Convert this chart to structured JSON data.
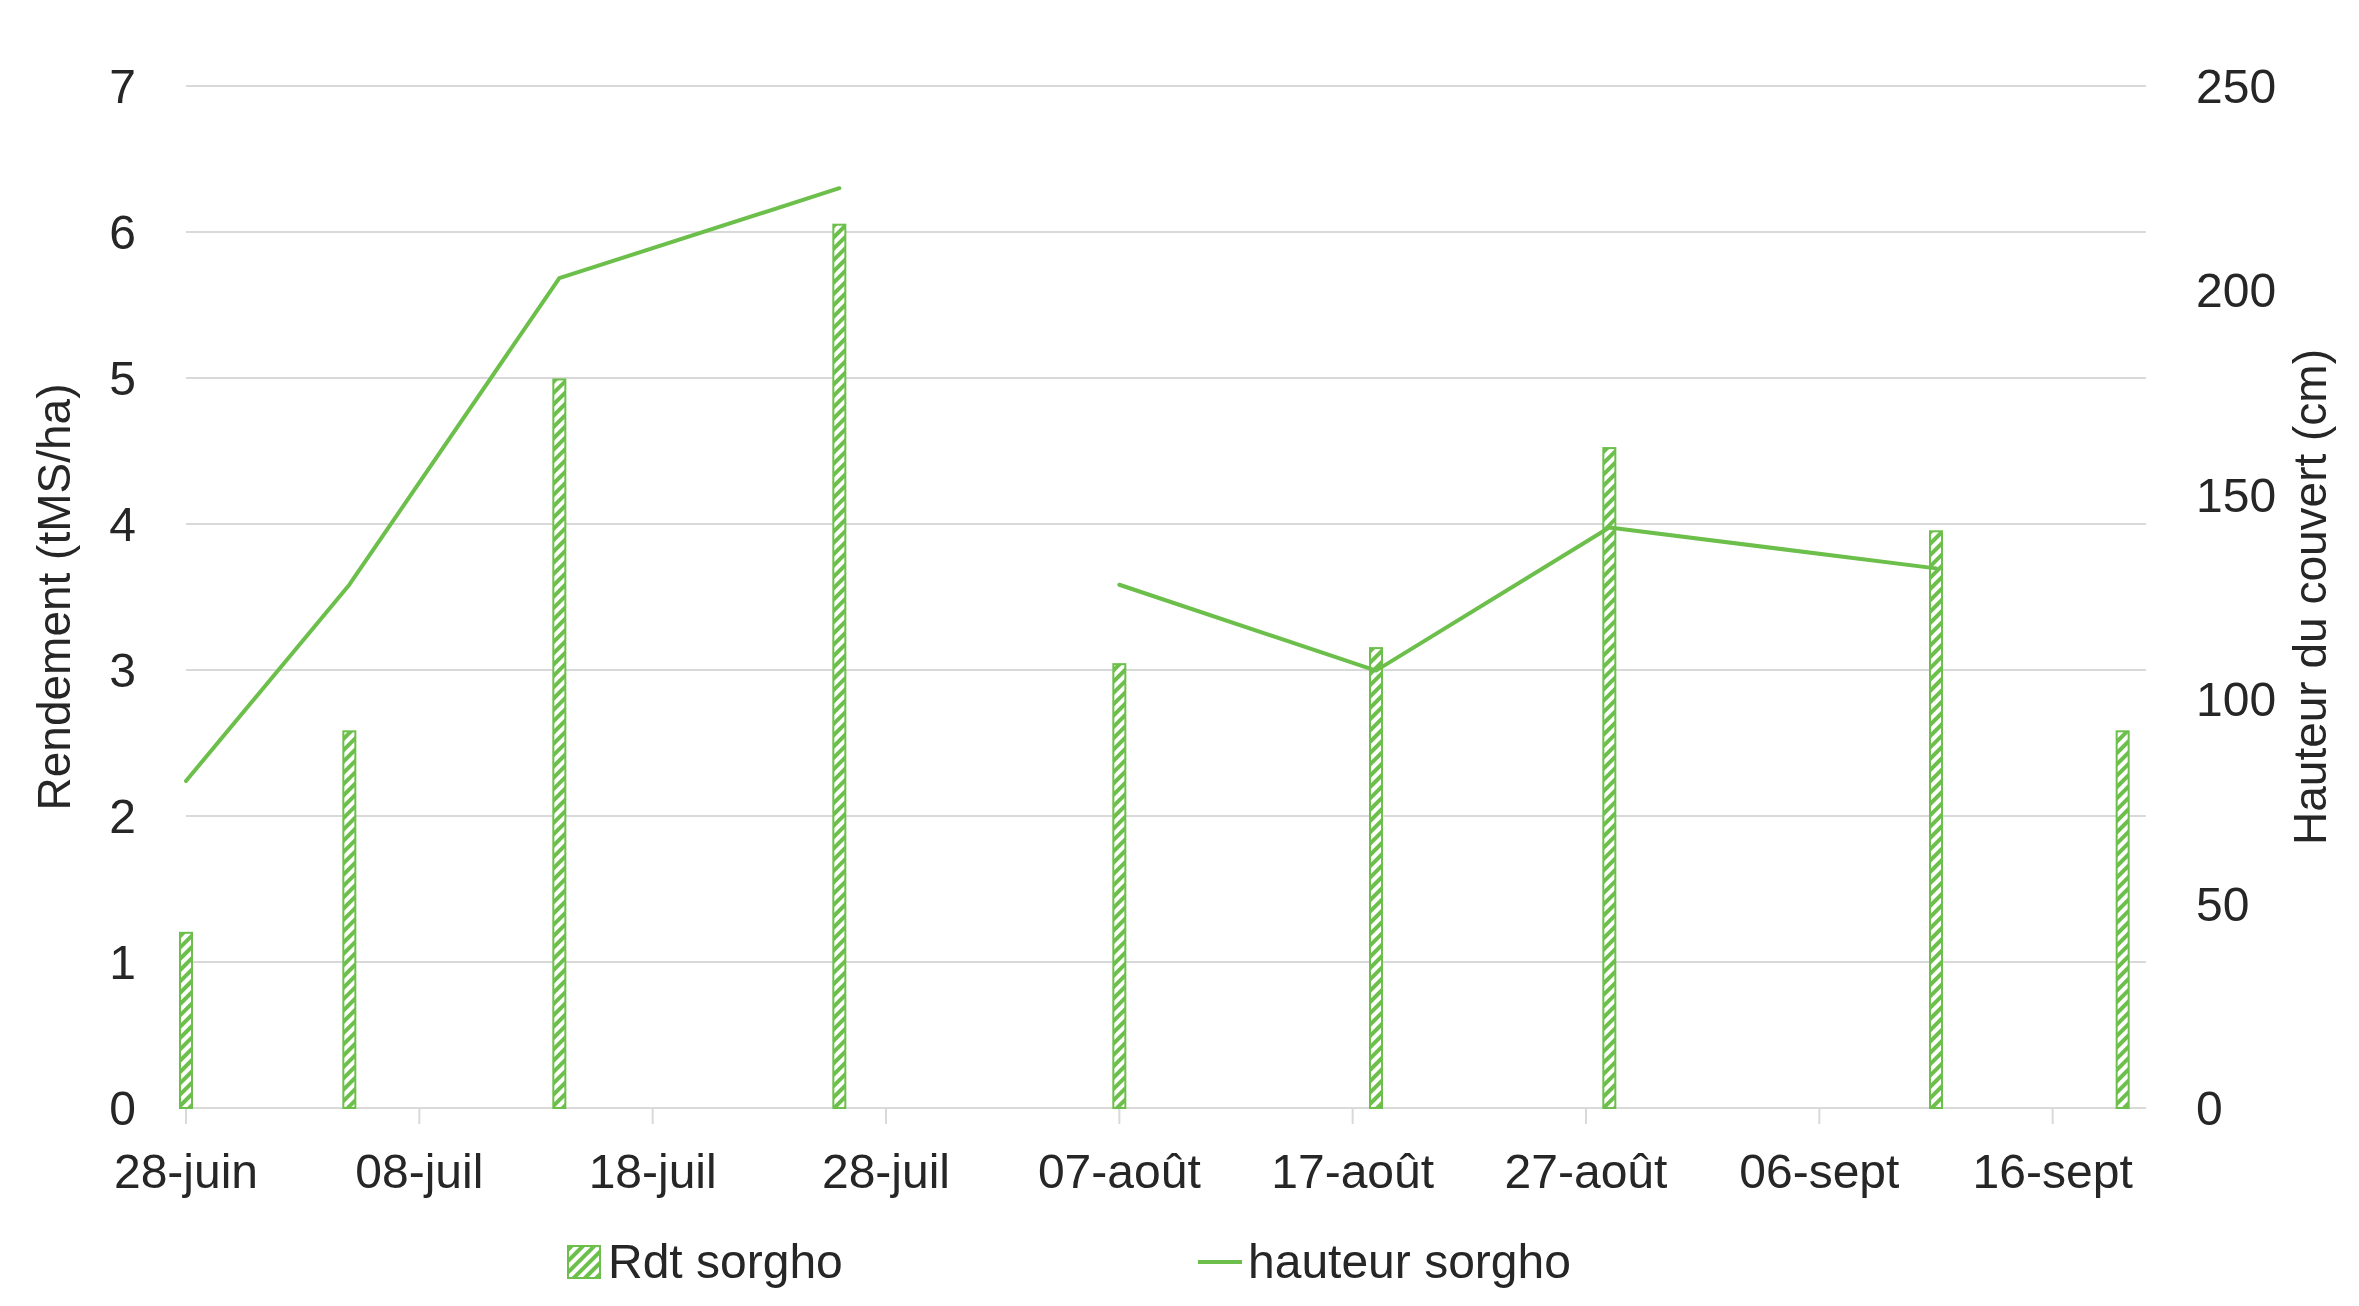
{
  "chart_data": {
    "type": "bar",
    "ylabel": "Rendement (tMS/ha)",
    "y2label": "Hauteur du couvert (cm)",
    "x": [
      "--06-28",
      "--07-05",
      "--07-14",
      "--07-26",
      "--08-07",
      "--08-18",
      "--08-28",
      "--09-11",
      "--09-19"
    ],
    "xlim": [
      "--06-28",
      "--09-20"
    ],
    "xticks": [
      {
        "value": "--06-28",
        "label": "28-juin"
      },
      {
        "value": "--07-08",
        "label": "08-juil"
      },
      {
        "value": "--07-18",
        "label": "18-juil"
      },
      {
        "value": "--07-28",
        "label": "28-juil"
      },
      {
        "value": "--08-07",
        "label": "07-août"
      },
      {
        "value": "--08-17",
        "label": "17-août"
      },
      {
        "value": "--08-27",
        "label": "27-août"
      },
      {
        "value": "--09-06",
        "label": "06-sept"
      },
      {
        "value": "--09-16",
        "label": "16-sept"
      }
    ],
    "ylim": [
      0,
      7
    ],
    "yticks": [
      0,
      1,
      2,
      3,
      4,
      5,
      6,
      7
    ],
    "y2lim": [
      0,
      250
    ],
    "y2ticks": [
      0,
      50,
      100,
      150,
      200,
      250
    ],
    "grid": "y",
    "legend": "bottom",
    "series": [
      {
        "name": "Rdt sorgho",
        "color": "#6cbf4a",
        "values": [
          1.2,
          2.58,
          4.99,
          6.05,
          3.04,
          3.15,
          4.52,
          3.95,
          2.58
        ]
      },
      {
        "name": "hauteur sorgho",
        "type": "line",
        "axis": "y2",
        "color": "#6cbf4a",
        "line_style": "solid",
        "marker": "none",
        "x": [
          "--06-28",
          "--07-05",
          "--07-14",
          "--07-26",
          "--08-01",
          "--08-07",
          "--08-18",
          "--08-28",
          "--09-11"
        ],
        "values": [
          80,
          128,
          203,
          225,
          null,
          128,
          107,
          142,
          132
        ]
      }
    ]
  }
}
